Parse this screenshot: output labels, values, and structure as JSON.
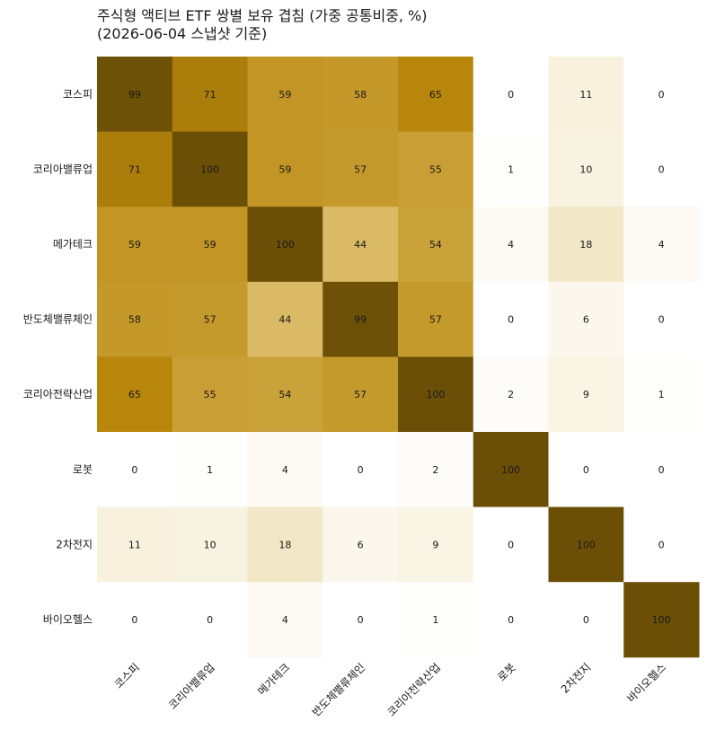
{
  "chart_data": {
    "type": "heatmap",
    "title": "주식형 액티브 ETF 쌍별 보유 겹침 (가중 공통비중, %)",
    "subtitle": "(2026-06-04 스냅샷 기준)",
    "rows": [
      "코스피",
      "코리아밸류업",
      "메가테크",
      "반도체밸류체인",
      "코리아전략산업",
      "로봇",
      "2차전지",
      "바이오헬스"
    ],
    "columns": [
      "코스피",
      "코리아밸류업",
      "메가테크",
      "반도체밸류체인",
      "코리아전략산업",
      "로봇",
      "2차전지",
      "바이오헬스"
    ],
    "values": [
      [
        99,
        71,
        59,
        58,
        65,
        0,
        11,
        0
      ],
      [
        71,
        100,
        59,
        57,
        55,
        1,
        10,
        0
      ],
      [
        59,
        59,
        100,
        44,
        54,
        4,
        18,
        4
      ],
      [
        58,
        57,
        44,
        99,
        57,
        0,
        6,
        0
      ],
      [
        65,
        55,
        54,
        57,
        100,
        2,
        9,
        1
      ],
      [
        0,
        1,
        4,
        0,
        2,
        100,
        0,
        0
      ],
      [
        11,
        10,
        18,
        6,
        9,
        0,
        100,
        0
      ],
      [
        0,
        0,
        4,
        0,
        1,
        0,
        0,
        100
      ]
    ],
    "value_range": [
      0,
      100
    ],
    "colors": {
      "low": "#ffffff",
      "mid_light": "#d9b860",
      "mid": "#b8860b",
      "high": "#6b4f06"
    },
    "grid": false,
    "legend": "none"
  }
}
